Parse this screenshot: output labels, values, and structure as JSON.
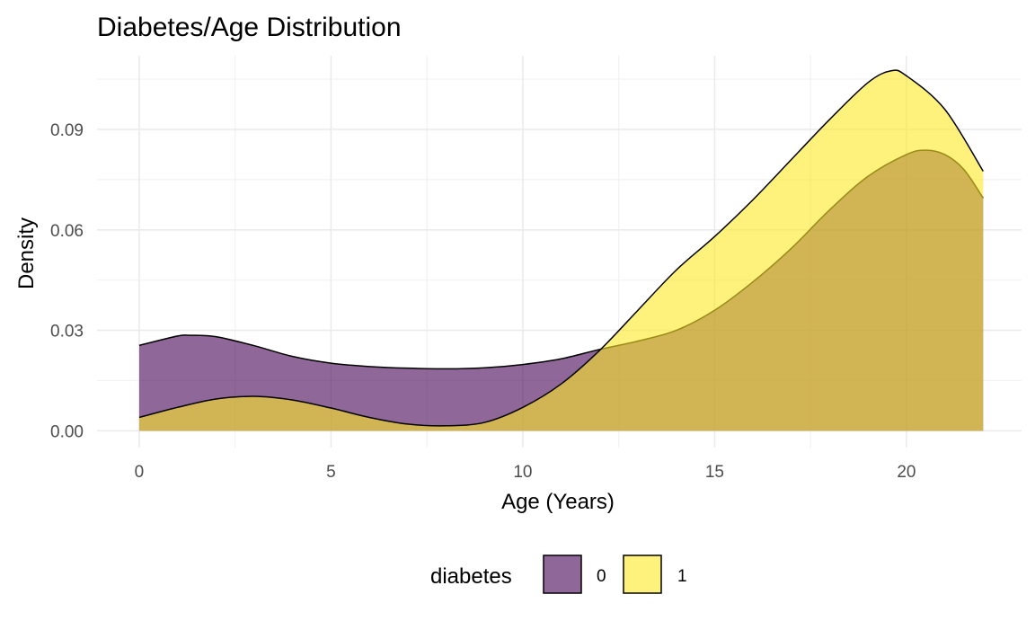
{
  "chart_data": {
    "type": "area",
    "subtype": "density",
    "title": "Diabetes/Age Distribution",
    "xlabel": "Age (Years)",
    "ylabel": "Density",
    "xlim": [
      -1.1,
      23
    ],
    "ylim": [
      -0.005,
      0.112
    ],
    "x_ticks": [
      0,
      5,
      10,
      15,
      20
    ],
    "x_tick_labels": [
      "0",
      "5",
      "10",
      "15",
      "20"
    ],
    "y_ticks": [
      0.0,
      0.03,
      0.06,
      0.09
    ],
    "y_tick_labels": [
      "0.00",
      "0.03",
      "0.06",
      "0.09"
    ],
    "grid": true,
    "legend": {
      "title": "diabetes",
      "position": "bottom"
    },
    "series": [
      {
        "name": "0",
        "color": "#440154",
        "opacity": 0.6,
        "x": [
          0,
          1,
          1.3,
          2,
          3,
          4,
          5,
          6,
          7,
          8,
          9,
          10,
          11,
          12,
          13,
          14,
          15,
          16,
          17,
          18,
          19,
          20,
          20.5,
          21,
          21.5,
          22
        ],
        "y": [
          0.0255,
          0.0283,
          0.0285,
          0.0281,
          0.0254,
          0.0222,
          0.0202,
          0.0192,
          0.0187,
          0.0185,
          0.0188,
          0.0198,
          0.0215,
          0.0243,
          0.0268,
          0.03,
          0.036,
          0.0445,
          0.0545,
          0.066,
          0.076,
          0.0825,
          0.0838,
          0.0825,
          0.078,
          0.0695
        ]
      },
      {
        "name": "1",
        "color": "#FDE725",
        "opacity": 0.6,
        "x": [
          0,
          1,
          2,
          3,
          4,
          5,
          6,
          7,
          8,
          9,
          10,
          11,
          12,
          13,
          14,
          15,
          16,
          17,
          18,
          19,
          19.6,
          20,
          21,
          22
        ],
        "y": [
          0.004,
          0.007,
          0.0095,
          0.0103,
          0.0092,
          0.0068,
          0.004,
          0.002,
          0.0015,
          0.0025,
          0.007,
          0.014,
          0.024,
          0.036,
          0.048,
          0.058,
          0.069,
          0.081,
          0.093,
          0.104,
          0.1075,
          0.106,
          0.096,
          0.0775
        ]
      }
    ]
  }
}
